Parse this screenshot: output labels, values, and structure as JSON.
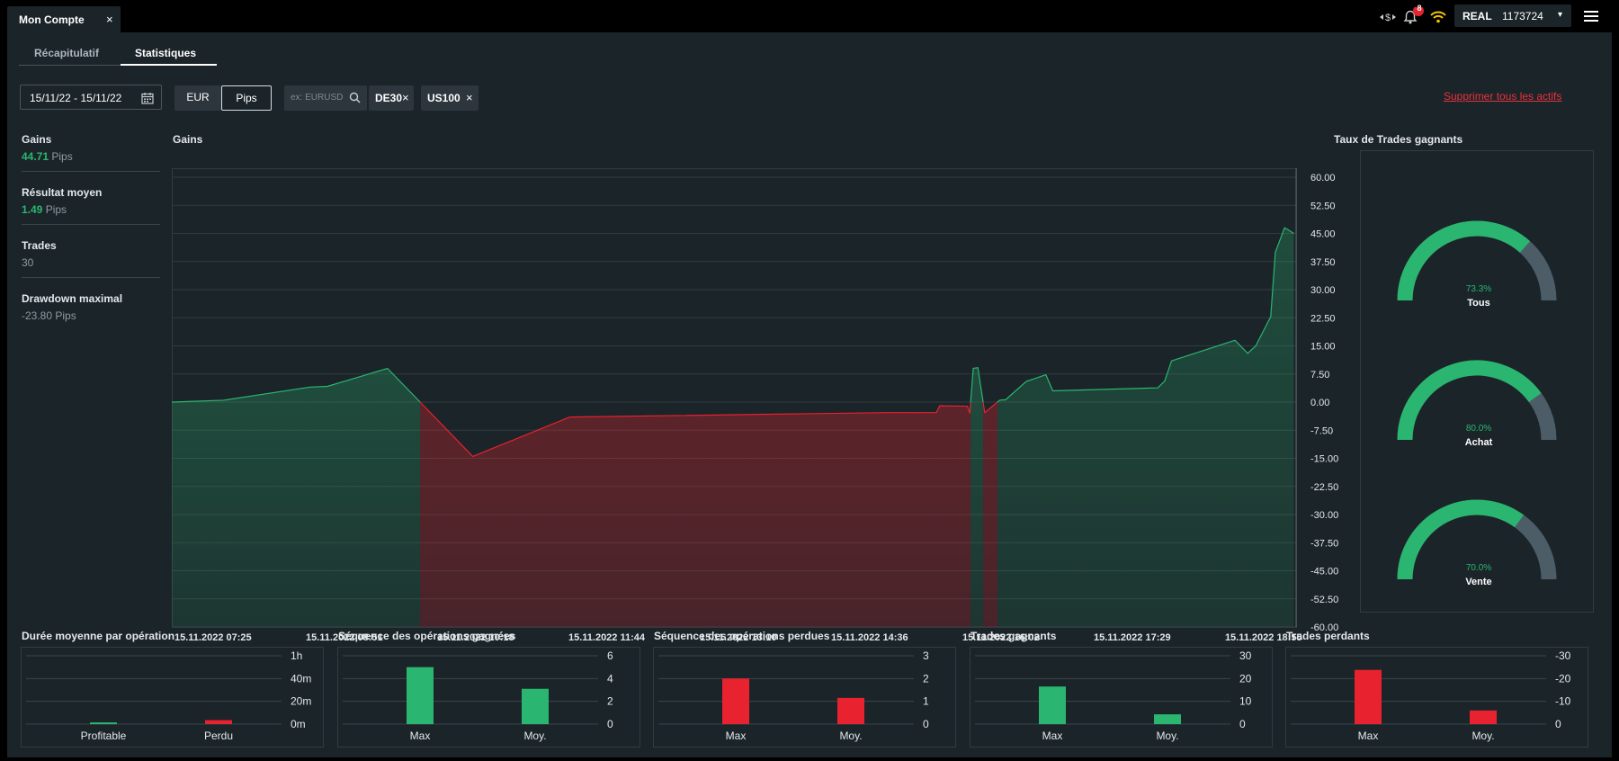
{
  "window": {
    "tab_title": "Mon Compte",
    "close_symbol": "×"
  },
  "topbar": {
    "notification_count": "8",
    "account_type": "REAL",
    "account_number": "1173724",
    "menu_caret": "▾"
  },
  "page_tabs": [
    {
      "label": "Récapitulatif",
      "active": false
    },
    {
      "label": "Statistiques",
      "active": true
    }
  ],
  "filters": {
    "date_range": "15/11/22 - 15/11/22",
    "units": [
      {
        "label": "EUR",
        "active": false
      },
      {
        "label": "Pips",
        "active": true
      }
    ],
    "search_placeholder": "ex: EURUSD",
    "chips": [
      {
        "label": "DE30"
      },
      {
        "label": "US100"
      }
    ],
    "chip_remove_symbol": "×",
    "clear_all": "Supprimer tous les actifs"
  },
  "summary": [
    {
      "label": "Gains",
      "value": "44.71",
      "unit": "Pips",
      "highlight": true
    },
    {
      "label": "Résultat moyen",
      "value": "1.49",
      "unit": "Pips",
      "highlight": true
    },
    {
      "label": "Trades",
      "value": "30",
      "unit": "",
      "highlight": false
    },
    {
      "label": "Drawdown maximal",
      "value": "-23.80",
      "unit": "Pips",
      "highlight": false
    }
  ],
  "main_chart_title": "Gains",
  "win_rate_title": "Taux de Trades gagnants",
  "colors": {
    "green": "#2ab670",
    "red": "#e8222e",
    "gauge_track": "#4d5d67",
    "link_red": "#e8323c"
  },
  "chart_data": [
    {
      "type": "area",
      "title": "Gains",
      "unit": "Pips",
      "ylim": [
        -60,
        60
      ],
      "yticks": [
        "60.00",
        "52.50",
        "45.00",
        "37.50",
        "30.00",
        "22.50",
        "15.00",
        "7.50",
        "0.00",
        "-7.50",
        "-15.00",
        "-22.50",
        "-30.00",
        "-37.50",
        "-45.00",
        "-52.50",
        "-60.00"
      ],
      "xticks": [
        "15.11.2022 07:25",
        "15.11.2022 08:51",
        "15.11.2022 10:18",
        "15.11.2022 11:44",
        "15.11.2022 13:10",
        "15.11.2022 14:36",
        "15.11.2022 16:02",
        "15.11.2022 17:29",
        "15.11.2022 18:55"
      ],
      "x_range_minutes": [
        445,
        1356
      ],
      "series": [
        {
          "x": [
            445,
            490,
            565,
            580,
            605,
            632,
            706,
            790,
            1065,
            1108,
            1111,
            1135,
            1137,
            1140,
            1144,
            1150,
            1163,
            1166,
            1168,
            1186,
            1203,
            1209,
            1300,
            1306,
            1312,
            1367,
            1378,
            1385,
            1398,
            1402,
            1410,
            1413,
            1418
          ],
          "y": [
            0.0,
            0.5,
            4.0,
            4.2,
            6.5,
            9.0,
            -14.5,
            -4.0,
            -2.8,
            -2.8,
            -1.0,
            -1.1,
            -3.0,
            9.0,
            9.2,
            -2.8,
            0.5,
            0.6,
            0.6,
            5.5,
            7.3,
            3.0,
            3.8,
            5.6,
            11.0,
            16.5,
            13.0,
            15.0,
            22.8,
            40.0,
            46.5,
            46.0,
            45.0
          ]
        }
      ]
    },
    {
      "type": "gauge",
      "title": "Taux de Trades gagnants",
      "series": [
        {
          "name": "Tous",
          "value": 73.3,
          "label": "73.3%"
        },
        {
          "name": "Achat",
          "value": 80.0,
          "label": "80.0%"
        },
        {
          "name": "Vente",
          "value": 70.0,
          "label": "70.0%"
        }
      ]
    },
    {
      "type": "bar",
      "title": "Durée moyenne par opération",
      "categories": [
        "Profitable",
        "Perdu"
      ],
      "values": [
        1.5,
        3.5
      ],
      "unit": "minutes",
      "ylim": [
        0,
        60
      ],
      "ytick_values": [
        0,
        20,
        40,
        60
      ],
      "yticks": [
        "0m",
        "20m",
        "40m",
        "1h"
      ],
      "colors": [
        "#2ab670",
        "#e8222e"
      ]
    },
    {
      "type": "bar",
      "title": "Séquence des opérations gagnées",
      "categories": [
        "Max",
        "Moy."
      ],
      "values": [
        5,
        3.1
      ],
      "ylim": [
        0,
        6
      ],
      "ytick_values": [
        0,
        2,
        4,
        6
      ],
      "yticks": [
        "0",
        "2",
        "4",
        "6"
      ],
      "colors": [
        "#2ab670",
        "#2ab670"
      ]
    },
    {
      "type": "bar",
      "title": "Séquence des opérations perdues",
      "categories": [
        "Max",
        "Moy."
      ],
      "values": [
        2,
        1.15
      ],
      "ylim": [
        0,
        3
      ],
      "ytick_values": [
        0,
        1,
        2,
        3
      ],
      "yticks": [
        "0",
        "1",
        "2",
        "3"
      ],
      "colors": [
        "#e8222e",
        "#e8222e"
      ]
    },
    {
      "type": "bar",
      "title": "Trades gagnants",
      "categories": [
        "Max",
        "Moy."
      ],
      "values": [
        16.5,
        4.3
      ],
      "ylim": [
        0,
        30
      ],
      "ytick_values": [
        0,
        10,
        20,
        30
      ],
      "yticks": [
        "0",
        "10",
        "20",
        "30"
      ],
      "colors": [
        "#2ab670",
        "#2ab670"
      ]
    },
    {
      "type": "bar",
      "title": "Trades perdants",
      "categories": [
        "Max",
        "Moy."
      ],
      "values": [
        -23.8,
        -6.0
      ],
      "ylim": [
        -30,
        0
      ],
      "ytick_values": [
        0,
        -10,
        -20,
        -30
      ],
      "yticks": [
        "0",
        "-10",
        "-20",
        "-30"
      ],
      "colors": [
        "#e8222e",
        "#e8222e"
      ]
    }
  ]
}
